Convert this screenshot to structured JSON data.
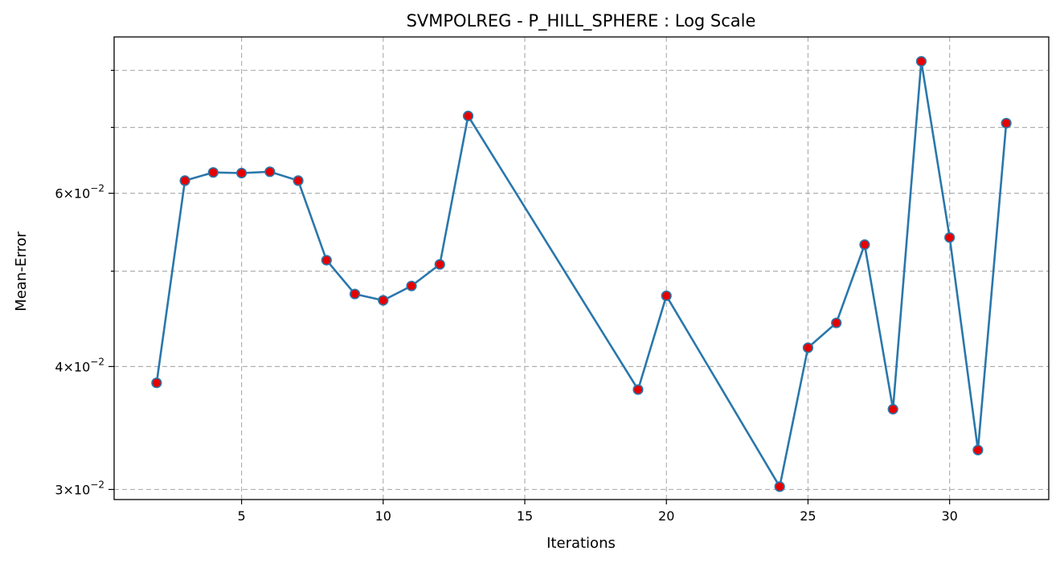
{
  "chart_data": {
    "type": "line",
    "title": "SVMPOLREG - P_HILL_SPHERE : Log Scale",
    "xlabel": "Iterations",
    "ylabel": "Mean-Error",
    "yscale": "log",
    "grid": true,
    "xlim": [
      0.5,
      33.5
    ],
    "ylim": [
      0.0293,
      0.0865
    ],
    "xticks": [
      5,
      10,
      15,
      20,
      25,
      30
    ],
    "xtick_labels": [
      "5",
      "10",
      "15",
      "20",
      "25",
      "30"
    ],
    "yticks_major": [
      0.03,
      0.04,
      0.06
    ],
    "ytick_major_labels": [
      "3×10",
      "4×10",
      "6×10"
    ],
    "ytick_label_exponent": "−2",
    "yticks_minor_gridlines": [
      0.05,
      0.07,
      0.08
    ],
    "line_color": "#2a77ab",
    "marker_fill": "#e60000",
    "series": [
      {
        "x": [
          2,
          3,
          4,
          5,
          6,
          7,
          8,
          9,
          10,
          11,
          12,
          13,
          19,
          20,
          24,
          25,
          26,
          27,
          28,
          29,
          30,
          31,
          32
        ],
        "y": [
          0.0385,
          0.0618,
          0.063,
          0.0629,
          0.0631,
          0.0618,
          0.0513,
          0.0474,
          0.0467,
          0.0483,
          0.0508,
          0.0719,
          0.0379,
          0.0472,
          0.0302,
          0.0418,
          0.0443,
          0.0532,
          0.0362,
          0.0817,
          0.0541,
          0.0329,
          0.0707
        ]
      }
    ]
  }
}
